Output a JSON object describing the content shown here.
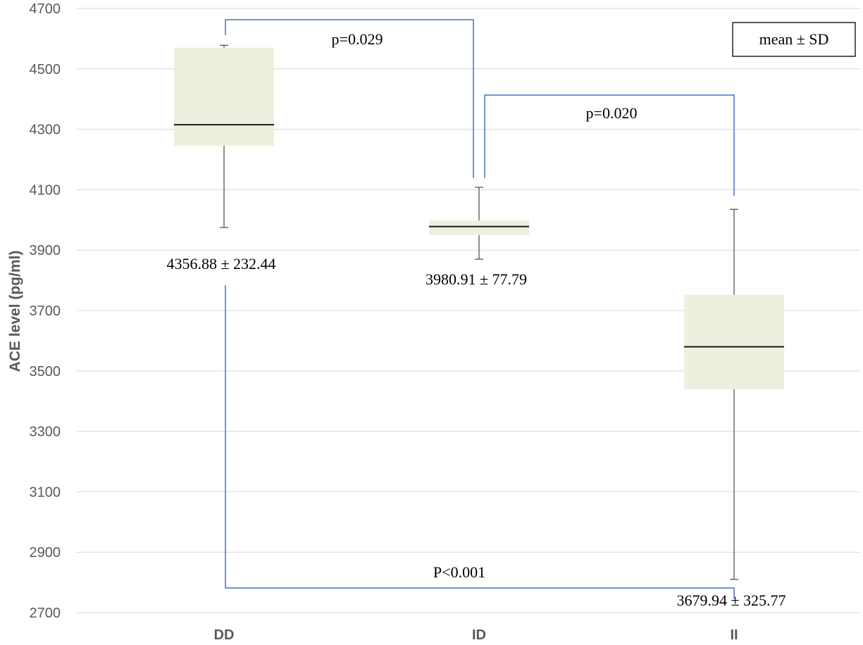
{
  "chart_data": {
    "type": "box",
    "title": "",
    "xlabel": "",
    "ylabel": "ACE level (pg/ml)",
    "ylim": [
      2700,
      4700
    ],
    "yticks": [
      2700,
      2900,
      3100,
      3300,
      3500,
      3700,
      3900,
      4100,
      4300,
      4500,
      4700
    ],
    "grid": true,
    "categories": [
      "DD",
      "ID",
      "II"
    ],
    "boxes": [
      {
        "category": "DD",
        "whisker_low": 3975,
        "q1": 4245,
        "median": 4315,
        "q3": 4570,
        "whisker_high": 4578,
        "label": "4356.88 ± 232.44"
      },
      {
        "category": "ID",
        "whisker_low": 3870,
        "q1": 3950,
        "median": 3978,
        "q3": 3998,
        "whisker_high": 4108,
        "label": "3980.91 ± 77.79"
      },
      {
        "category": "II",
        "whisker_low": 2810,
        "q1": 3440,
        "median": 3580,
        "q3": 3752,
        "whisker_high": 4035,
        "label": "3679.94 ± 325.77"
      }
    ],
    "comparisons": [
      {
        "from": "DD",
        "to": "ID",
        "label": "p=0.029"
      },
      {
        "from": "ID",
        "to": "II",
        "label": "p=0.020"
      },
      {
        "from": "DD",
        "to": "II",
        "label": "P<0.001"
      }
    ],
    "legend": {
      "text": "mean ± SD",
      "position": "top-right"
    },
    "colors": {
      "box_fill": "#ebf1de",
      "bracket": "#4472c4",
      "grid": "#d9d9d9"
    }
  }
}
